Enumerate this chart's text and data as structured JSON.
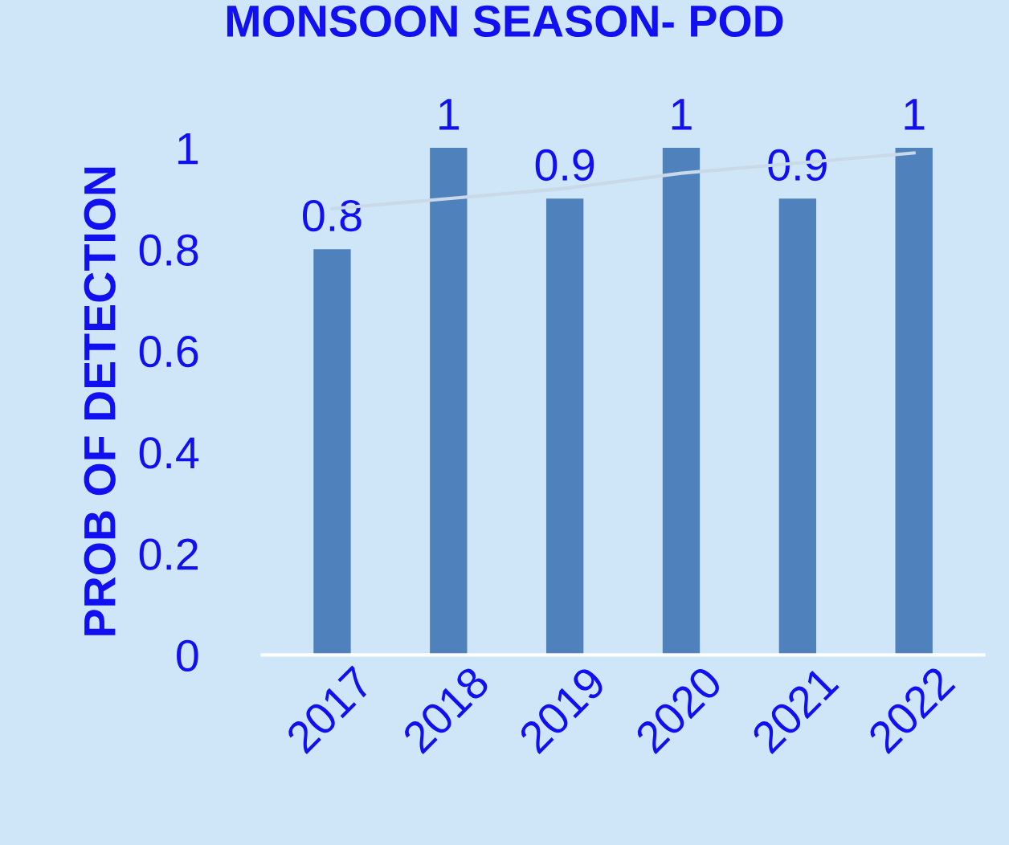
{
  "chart_data": {
    "type": "bar",
    "title": "MONSOON SEASON- POD",
    "ylabel": "PROB OF DETECTION",
    "categories": [
      "2017",
      "2018",
      "2019",
      "2020",
      "2021",
      "2022"
    ],
    "series": [
      {
        "color": "#4f81bd",
        "values": [
          0.8,
          1,
          0.9,
          1,
          0.9,
          1
        ],
        "value_labels": [
          "0.8",
          "1",
          "0.9",
          "1",
          "0.9",
          "1"
        ]
      },
      {
        "type": "line",
        "color": "#c9d9e8",
        "values": [
          0.88,
          0.9,
          0.92,
          0.95,
          0.97,
          0.99
        ]
      }
    ],
    "ylim": [
      0,
      1
    ],
    "yticks": [
      0,
      0.2,
      0.4,
      0.6,
      0.8,
      1
    ],
    "grid": false,
    "legend": false
  }
}
